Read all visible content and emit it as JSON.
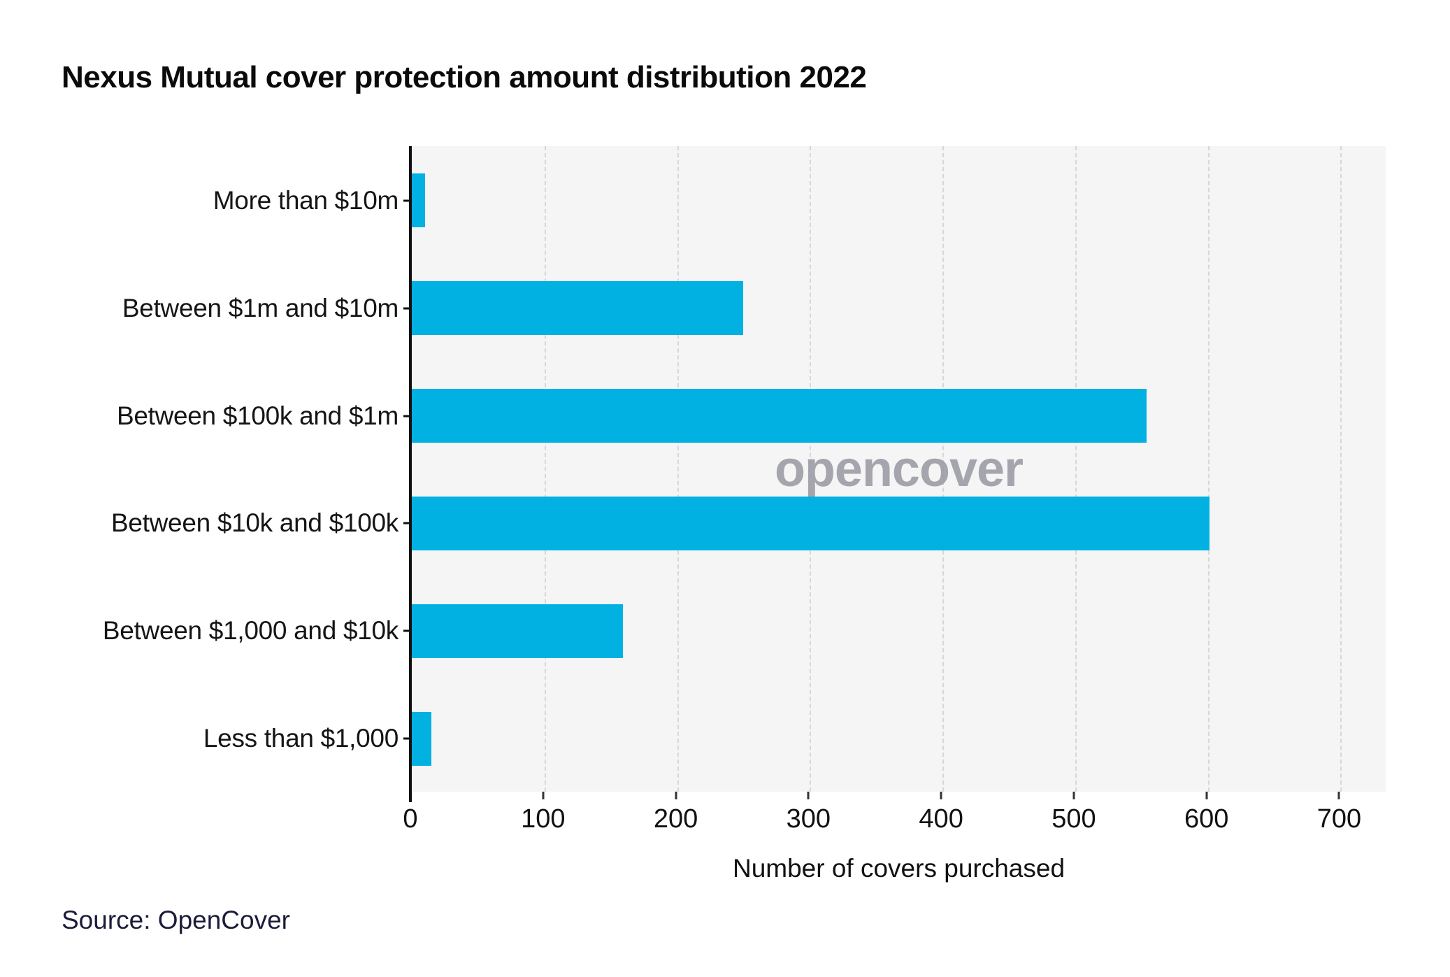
{
  "title": "Nexus Mutual cover protection amount distribution 2022",
  "source": "Source: OpenCover",
  "watermark": "opencover",
  "chart_data": {
    "type": "bar",
    "orientation": "horizontal",
    "title": "Nexus Mutual cover protection amount distribution 2022",
    "categories": [
      "More than $10m",
      "Between $1m and $10m",
      "Between $100k and $1m",
      "Between $10k and $100k",
      "Between $1,000 and $10k",
      "Less than $1,000"
    ],
    "values": [
      10,
      250,
      554,
      601,
      159,
      15
    ],
    "xlabel": "Number of covers purchased",
    "ylabel": "",
    "x_ticks": [
      0,
      100,
      200,
      300,
      400,
      500,
      600,
      700
    ],
    "xlim": [
      0,
      734
    ],
    "grid": "vertical-dashed",
    "legend": "none",
    "bar_color": "#00b1e1",
    "plot_bg": "#f5f5f6",
    "gridline_color": "#d7d7d9",
    "source": "Source: OpenCover",
    "watermark": "opencover"
  }
}
